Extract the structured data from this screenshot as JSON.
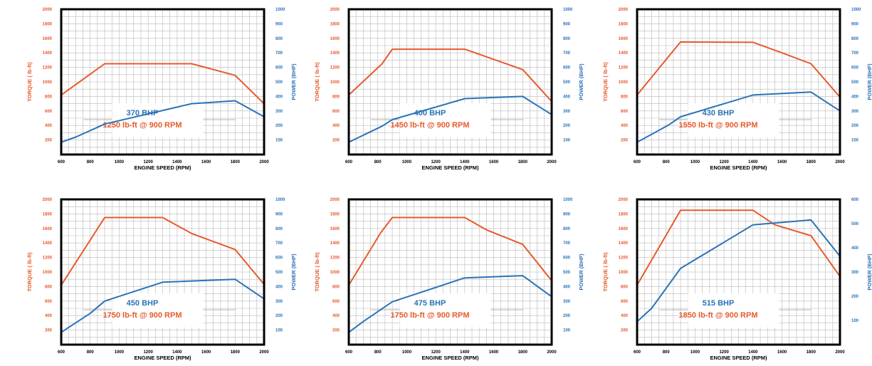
{
  "colors": {
    "torque": "#e8592b",
    "power": "#2a73b8",
    "frame": "#000000",
    "grid": "#b8b8b8",
    "axis_title": "#000000",
    "tick": "#000000"
  },
  "labels": {
    "xlabel": "ENGINE SPEED (RPM)",
    "ylabel_left": "TORQUE ( lb-ft)",
    "ylabel_right": "POWER (BHP)"
  },
  "chart_data": [
    {
      "type": "line",
      "xlabel": "ENGINE SPEED (RPM)",
      "ylabel": "TORQUE ( lb-ft)",
      "y2label": "POWER (BHP)",
      "xlim": [
        600,
        2000
      ],
      "xticks": [
        600,
        800,
        1000,
        1200,
        1400,
        1600,
        1800,
        2000
      ],
      "ylim": [
        0,
        2000
      ],
      "yticks": [
        200,
        400,
        600,
        800,
        1000,
        1200,
        1400,
        1600,
        1800,
        2000
      ],
      "y2lim": [
        0,
        1000
      ],
      "y2ticks": [
        100,
        200,
        300,
        400,
        500,
        600,
        700,
        800,
        900,
        1000
      ],
      "grid": true,
      "annotation": {
        "power": "370 BHP",
        "torque": "1250 lb-ft @ 900 RPM"
      },
      "series": [
        {
          "axis": "left",
          "x": [
            600,
            900,
            1500,
            1800,
            2000
          ],
          "y": [
            820,
            1250,
            1250,
            1090,
            700
          ]
        },
        {
          "axis": "right",
          "x": [
            600,
            700,
            900,
            1500,
            1800,
            2000
          ],
          "y": [
            85,
            120,
            210,
            350,
            370,
            260
          ]
        }
      ]
    },
    {
      "type": "line",
      "xlabel": "ENGINE SPEED (RPM)",
      "ylabel": "TORQUE ( lb-ft)",
      "y2label": "POWER (BHP)",
      "xlim": [
        600,
        2000
      ],
      "xticks": [
        600,
        800,
        1000,
        1200,
        1400,
        1600,
        1800,
        2000
      ],
      "ylim": [
        0,
        2000
      ],
      "yticks": [
        200,
        400,
        600,
        800,
        1000,
        1200,
        1400,
        1600,
        1800,
        2000
      ],
      "y2lim": [
        0,
        1000
      ],
      "y2ticks": [
        100,
        200,
        300,
        400,
        500,
        600,
        700,
        800,
        900,
        1000
      ],
      "grid": true,
      "annotation": {
        "power": "400 BHP",
        "torque": "1450 lb-ft @ 900 RPM"
      },
      "series": [
        {
          "axis": "left",
          "x": [
            600,
            830,
            900,
            1400,
            1800,
            2000
          ],
          "y": [
            820,
            1250,
            1450,
            1450,
            1170,
            730
          ]
        },
        {
          "axis": "right",
          "x": [
            600,
            830,
            900,
            1400,
            1800,
            2000
          ],
          "y": [
            85,
            195,
            240,
            385,
            400,
            275
          ]
        }
      ]
    },
    {
      "type": "line",
      "xlabel": "ENGINE SPEED (RPM)",
      "ylabel": "TORQUE ( lb-ft)",
      "y2label": "POWER (BHP)",
      "xlim": [
        600,
        2000
      ],
      "xticks": [
        600,
        800,
        1000,
        1200,
        1400,
        1600,
        1800,
        2000
      ],
      "ylim": [
        0,
        2000
      ],
      "yticks": [
        200,
        400,
        600,
        800,
        1000,
        1200,
        1400,
        1600,
        1800,
        2000
      ],
      "y2lim": [
        0,
        1000
      ],
      "y2ticks": [
        100,
        200,
        300,
        400,
        500,
        600,
        700,
        800,
        900,
        1000
      ],
      "grid": true,
      "annotation": {
        "power": "430 BHP",
        "torque": "1550 lb-ft @ 900 RPM"
      },
      "series": [
        {
          "axis": "left",
          "x": [
            600,
            830,
            900,
            1400,
            1600,
            1800,
            2000
          ],
          "y": [
            820,
            1380,
            1550,
            1545,
            1400,
            1250,
            790
          ]
        },
        {
          "axis": "right",
          "x": [
            600,
            820,
            900,
            1400,
            1800,
            2000
          ],
          "y": [
            85,
            205,
            260,
            410,
            430,
            300
          ]
        }
      ]
    },
    {
      "type": "line",
      "xlabel": "ENGINE SPEED (RPM)",
      "ylabel": "TORQUE ( lb-ft)",
      "y2label": "POWER (BHP)",
      "xlim": [
        600,
        2000
      ],
      "xticks": [
        600,
        800,
        1000,
        1200,
        1400,
        1600,
        1800,
        2000
      ],
      "ylim": [
        0,
        2000
      ],
      "yticks": [
        200,
        400,
        600,
        800,
        1000,
        1200,
        1400,
        1600,
        1800,
        2000
      ],
      "y2lim": [
        0,
        1000
      ],
      "y2ticks": [
        100,
        200,
        300,
        400,
        500,
        600,
        700,
        800,
        900,
        1000
      ],
      "grid": true,
      "annotation": {
        "power": "450 BHP",
        "torque": "1750 lb-ft @ 900 RPM"
      },
      "series": [
        {
          "axis": "left",
          "x": [
            600,
            900,
            1300,
            1500,
            1800,
            2000
          ],
          "y": [
            820,
            1750,
            1750,
            1530,
            1310,
            830
          ]
        },
        {
          "axis": "right",
          "x": [
            600,
            800,
            900,
            1300,
            1800,
            2000
          ],
          "y": [
            85,
            215,
            300,
            430,
            450,
            315
          ]
        }
      ]
    },
    {
      "type": "line",
      "xlabel": "ENGINE SPEED (RPM)",
      "ylabel": "TORQUE ( lb-ft)",
      "y2label": "POWER (BHP)",
      "xlim": [
        600,
        2000
      ],
      "xticks": [
        600,
        800,
        1000,
        1200,
        1400,
        1600,
        1800,
        2000
      ],
      "ylim": [
        0,
        2000
      ],
      "yticks": [
        200,
        400,
        600,
        800,
        1000,
        1200,
        1400,
        1600,
        1800,
        2000
      ],
      "y2lim": [
        0,
        1000
      ],
      "y2ticks": [
        100,
        200,
        300,
        400,
        500,
        600,
        700,
        800,
        900,
        1000
      ],
      "grid": true,
      "annotation": {
        "power": "475 BHP",
        "torque": "1750 lb-ft @ 900 RPM"
      },
      "series": [
        {
          "axis": "left",
          "x": [
            600,
            820,
            900,
            1400,
            1550,
            1800,
            2000
          ],
          "y": [
            820,
            1540,
            1750,
            1750,
            1580,
            1380,
            880
          ]
        },
        {
          "axis": "right",
          "x": [
            600,
            700,
            900,
            1400,
            1800,
            2000
          ],
          "y": [
            85,
            160,
            295,
            460,
            475,
            330
          ]
        }
      ]
    },
    {
      "type": "line",
      "xlabel": "ENGINE SPEED (RPM)",
      "ylabel": "TORQUE ( lb-ft)",
      "y2label": "POWER (BHP)",
      "xlim": [
        600,
        2000
      ],
      "xticks": [
        600,
        800,
        1000,
        1200,
        1400,
        1600,
        1800,
        2000
      ],
      "ylim": [
        0,
        2000
      ],
      "yticks": [
        200,
        400,
        600,
        800,
        1000,
        1200,
        1400,
        1600,
        1800,
        2000
      ],
      "y2lim": [
        0,
        600
      ],
      "y2ticks": [
        100,
        200,
        300,
        400,
        500,
        600
      ],
      "grid": true,
      "annotation": {
        "power": "515 BHP",
        "torque": "1850 lb-ft @ 900 RPM"
      },
      "series": [
        {
          "axis": "left",
          "x": [
            600,
            900,
            1400,
            1550,
            1800,
            2000
          ],
          "y": [
            820,
            1850,
            1850,
            1650,
            1500,
            940
          ]
        },
        {
          "axis": "right",
          "x": [
            600,
            700,
            900,
            1400,
            1800,
            2000
          ],
          "y": [
            95,
            150,
            315,
            495,
            515,
            365
          ]
        }
      ]
    }
  ]
}
